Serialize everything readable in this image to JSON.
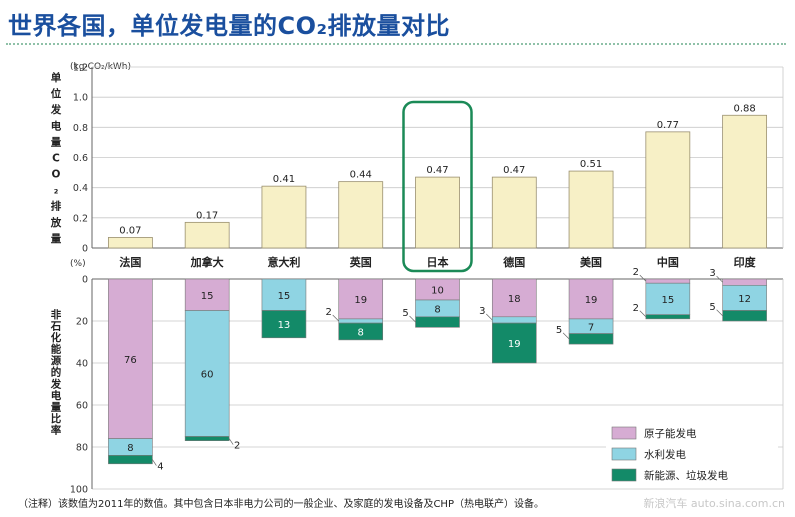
{
  "title": "世界各国，单位发电量的CO₂排放量对比",
  "chart_data": [
    {
      "type": "bar",
      "unit": "(kg-CO₂/kWh)",
      "ylabel": "单位发电量CO₂排放量",
      "categories": [
        "法国",
        "加拿大",
        "意大利",
        "英国",
        "日本",
        "德国",
        "美国",
        "中国",
        "印度"
      ],
      "values": [
        0.07,
        0.17,
        0.41,
        0.44,
        0.47,
        0.47,
        0.51,
        0.77,
        0.88
      ],
      "value_labels": [
        "0.07",
        "0.17",
        "0.41",
        "0.44",
        "0.47",
        "0.47",
        "0.51",
        "0.77",
        "0.88"
      ],
      "ylim": [
        0,
        1.2
      ],
      "yticks": [
        "0",
        "0.2",
        "0.4",
        "0.6",
        "0.8",
        "1.0",
        "1.2"
      ],
      "grid": true,
      "highlight_category": "日本",
      "color": "#f7f0c6"
    },
    {
      "type": "bar",
      "stacked": true,
      "inverted_axis": true,
      "unit": "(%)",
      "ylabel": "非石化能源的发电量比率",
      "categories": [
        "法国",
        "加拿大",
        "意大利",
        "英国",
        "日本",
        "德国",
        "美国",
        "中国",
        "印度"
      ],
      "ylim": [
        0,
        100
      ],
      "yticks": [
        "0",
        "20",
        "40",
        "60",
        "80",
        "100"
      ],
      "series": [
        {
          "name": "原子能发电",
          "color": "#d6acd3",
          "values": [
            76,
            15,
            0,
            19,
            10,
            18,
            19,
            2,
            3
          ],
          "labels": [
            "76",
            "15",
            "",
            "19",
            "10",
            "18",
            "19",
            "2",
            "3"
          ]
        },
        {
          "name": "水利发电",
          "color": "#8fd4e3",
          "values": [
            8,
            60,
            15,
            2,
            8,
            3,
            7,
            15,
            12
          ],
          "labels": [
            "8",
            "60",
            "15",
            "2",
            "8",
            "3",
            "7",
            "15",
            "12"
          ]
        },
        {
          "name": "新能源、垃圾发电",
          "color": "#138a68",
          "values": [
            4,
            2,
            13,
            8,
            5,
            19,
            5,
            2,
            5
          ],
          "labels": [
            "4",
            "2",
            "13",
            "8",
            "5",
            "19",
            "5",
            "2",
            "5"
          ]
        }
      ],
      "legend_position": "bottom-right"
    }
  ],
  "note": "（注释）该数值为2011年的数值。其中包含日本非电力公司的一般企业、及家庭的发电设备及CHP（热电联产）设备。",
  "watermark": "新浪汽车 auto.sina.com.cn"
}
